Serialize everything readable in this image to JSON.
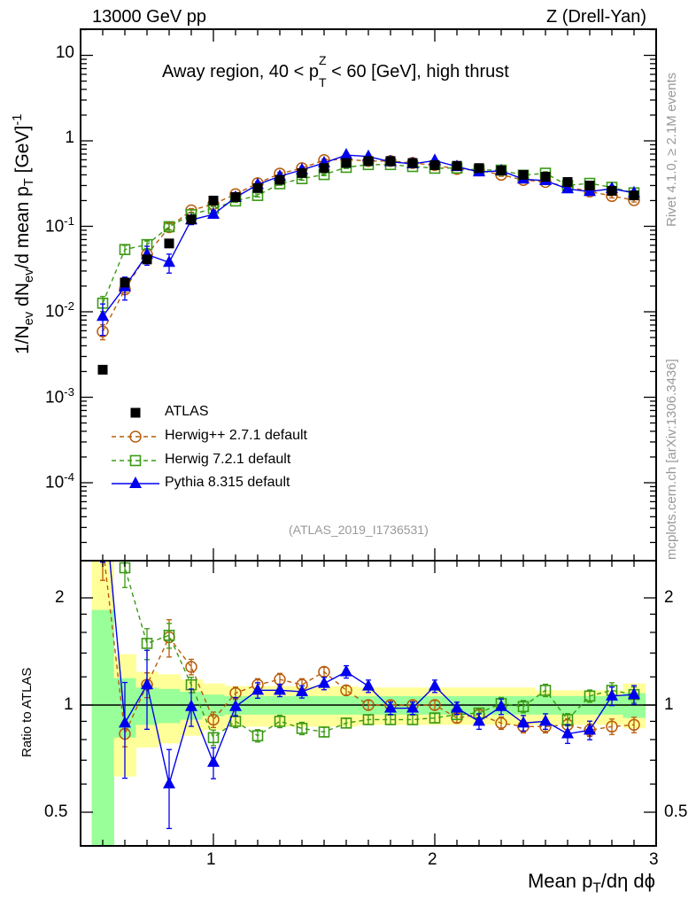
{
  "header": {
    "left": "13000 GeV pp",
    "right": "Z (Drell-Yan)",
    "title_pre": "Away region, 40 < p",
    "title_sub": "T",
    "title_sup": "Z",
    "title_post": " < 60 [GeV], high thrust",
    "analysis": "(ATLAS_2019_I1736531)",
    "side_top": "Rivet 4.1.0, ≥ 2.1M events",
    "side_bottom": "mcplots.cern.ch [arXiv:1306.3436]"
  },
  "axes": {
    "ylabel_main": "1/N_ev dN_ev/d mean p_T [GeV]^-1",
    "ylabel_parts": {
      "a": "1/N",
      "b": "ev",
      "c": " dN",
      "d": "ev",
      "e": "/d mean p",
      "f": "T",
      "g": " [GeV]",
      "h": "-1"
    },
    "ylabel_ratio": "Ratio to ATLAS",
    "xlabel_parts": {
      "a": "Mean p",
      "b": "T",
      "c": "/dη dϕ"
    },
    "x_ticks": [
      "1",
      "2",
      "3"
    ],
    "main_ticks": [
      {
        "base": "10",
        "exp": "-4",
        "v": 0.0001
      },
      {
        "base": "10",
        "exp": "-3",
        "v": 0.001
      },
      {
        "base": "10",
        "exp": "-2",
        "v": 0.01
      },
      {
        "base": "10",
        "exp": "-1",
        "v": 0.1
      },
      {
        "base": "1",
        "exp": "",
        "v": 1
      },
      {
        "base": "10",
        "exp": "",
        "v": 10
      }
    ],
    "ratio_ticks": [
      "0.5",
      "1",
      "2"
    ]
  },
  "chart_data": {
    "type": "scatter",
    "xlabel": "Mean p_T/dη dϕ",
    "ylabel": "1/N_ev dN_ev/d mean p_T [GeV]^-1",
    "xlim": [
      0.4,
      3.0
    ],
    "ylim": [
      1.2e-05,
      20
    ],
    "yscale": "log",
    "ratio_ylim": [
      0.4,
      2.5
    ],
    "x": [
      0.5,
      0.6,
      0.7,
      0.8,
      0.9,
      1.0,
      1.1,
      1.2,
      1.3,
      1.4,
      1.5,
      1.6,
      1.7,
      1.8,
      1.9,
      2.0,
      2.1,
      2.2,
      2.3,
      2.4,
      2.5,
      2.6,
      2.7,
      2.8,
      2.9
    ],
    "legend_position": "bottom-left",
    "data": {
      "name": "ATLAS",
      "values": [
        0.0021,
        0.022,
        0.041,
        0.063,
        0.12,
        0.2,
        0.22,
        0.28,
        0.35,
        0.42,
        0.48,
        0.55,
        0.58,
        0.58,
        0.55,
        0.52,
        0.51,
        0.48,
        0.45,
        0.4,
        0.38,
        0.33,
        0.3,
        0.26,
        0.23
      ],
      "band_total": [
        [
          0.35,
          2.6
        ],
        [
          0.63,
          1.39
        ],
        [
          0.76,
          1.24
        ],
        [
          0.78,
          1.22
        ],
        [
          0.82,
          1.18
        ],
        [
          0.85,
          1.15
        ],
        [
          0.87,
          1.13
        ],
        [
          0.87,
          1.13
        ],
        [
          0.87,
          1.13
        ],
        [
          0.87,
          1.13
        ],
        [
          0.87,
          1.13
        ],
        [
          0.87,
          1.13
        ],
        [
          0.88,
          1.12
        ],
        [
          0.88,
          1.12
        ],
        [
          0.88,
          1.12
        ],
        [
          0.88,
          1.12
        ],
        [
          0.88,
          1.12
        ],
        [
          0.88,
          1.12
        ],
        [
          0.88,
          1.12
        ],
        [
          0.88,
          1.12
        ],
        [
          0.88,
          1.1
        ],
        [
          0.88,
          1.1
        ],
        [
          0.88,
          1.1
        ],
        [
          0.88,
          1.1
        ],
        [
          0.86,
          1.15
        ]
      ],
      "band_stat": [
        [
          0.35,
          1.85
        ],
        [
          0.81,
          1.19
        ],
        [
          0.88,
          1.12
        ],
        [
          0.89,
          1.11
        ],
        [
          0.91,
          1.09
        ],
        [
          0.93,
          1.07
        ],
        [
          0.94,
          1.06
        ],
        [
          0.94,
          1.06
        ],
        [
          0.94,
          1.06
        ],
        [
          0.94,
          1.06
        ],
        [
          0.94,
          1.06
        ],
        [
          0.94,
          1.06
        ],
        [
          0.94,
          1.06
        ],
        [
          0.94,
          1.06
        ],
        [
          0.94,
          1.06
        ],
        [
          0.94,
          1.06
        ],
        [
          0.94,
          1.06
        ],
        [
          0.94,
          1.06
        ],
        [
          0.94,
          1.06
        ],
        [
          0.94,
          1.06
        ],
        [
          0.94,
          1.06
        ],
        [
          0.94,
          1.06
        ],
        [
          0.94,
          1.06
        ],
        [
          0.94,
          1.06
        ],
        [
          0.92,
          1.08
        ]
      ]
    },
    "series": [
      {
        "name": "Herwig++ 2.7.1 default",
        "color": "#b85c0a",
        "marker": "open-circle",
        "dash": true,
        "ratio": [
          2.8,
          0.83,
          1.14,
          1.55,
          1.28,
          0.91,
          1.08,
          1.14,
          1.18,
          1.14,
          1.24,
          1.1,
          1.0,
          1.0,
          1.0,
          1.0,
          0.92,
          0.94,
          0.89,
          0.87,
          0.87,
          0.88,
          0.85,
          0.87,
          0.88
        ],
        "rel_err": [
          0.2,
          0.08,
          0.08,
          0.12,
          0.05,
          0.05,
          0.04,
          0.04,
          0.04,
          0.04,
          0.03,
          0.03,
          0.03,
          0.03,
          0.03,
          0.03,
          0.03,
          0.03,
          0.04,
          0.04,
          0.04,
          0.04,
          0.04,
          0.05,
          0.05
        ]
      },
      {
        "name": "Herwig 7.2.1 default",
        "color": "#3a9a14",
        "marker": "open-square",
        "dash": true,
        "ratio": [
          6.0,
          2.43,
          1.49,
          1.57,
          1.14,
          0.81,
          0.9,
          0.82,
          0.9,
          0.86,
          0.84,
          0.89,
          0.91,
          0.91,
          0.91,
          0.92,
          0.94,
          0.95,
          1.01,
          0.99,
          1.1,
          0.91,
          1.06,
          1.1,
          1.07
        ],
        "rel_err": [
          0.2,
          0.12,
          0.1,
          0.08,
          0.05,
          0.05,
          0.04,
          0.04,
          0.04,
          0.04,
          0.03,
          0.03,
          0.03,
          0.03,
          0.03,
          0.03,
          0.03,
          0.03,
          0.04,
          0.04,
          0.04,
          0.04,
          0.04,
          0.05,
          0.05
        ]
      },
      {
        "name": "Pythia 8.315 default",
        "color": "#0000ee",
        "marker": "filled-triangle",
        "dash": false,
        "ratio": [
          4.2,
          0.89,
          1.14,
          0.6,
          0.99,
          0.69,
          0.99,
          1.1,
          1.1,
          1.09,
          1.15,
          1.24,
          1.13,
          0.98,
          0.98,
          1.13,
          0.98,
          0.9,
          0.99,
          0.89,
          0.9,
          0.83,
          0.85,
          1.06,
          1.07
        ],
        "rel_err": [
          0.4,
          0.3,
          0.25,
          0.25,
          0.12,
          0.1,
          0.06,
          0.05,
          0.04,
          0.04,
          0.04,
          0.04,
          0.04,
          0.04,
          0.04,
          0.04,
          0.04,
          0.05,
          0.05,
          0.05,
          0.05,
          0.06,
          0.06,
          0.06,
          0.06
        ]
      }
    ]
  }
}
